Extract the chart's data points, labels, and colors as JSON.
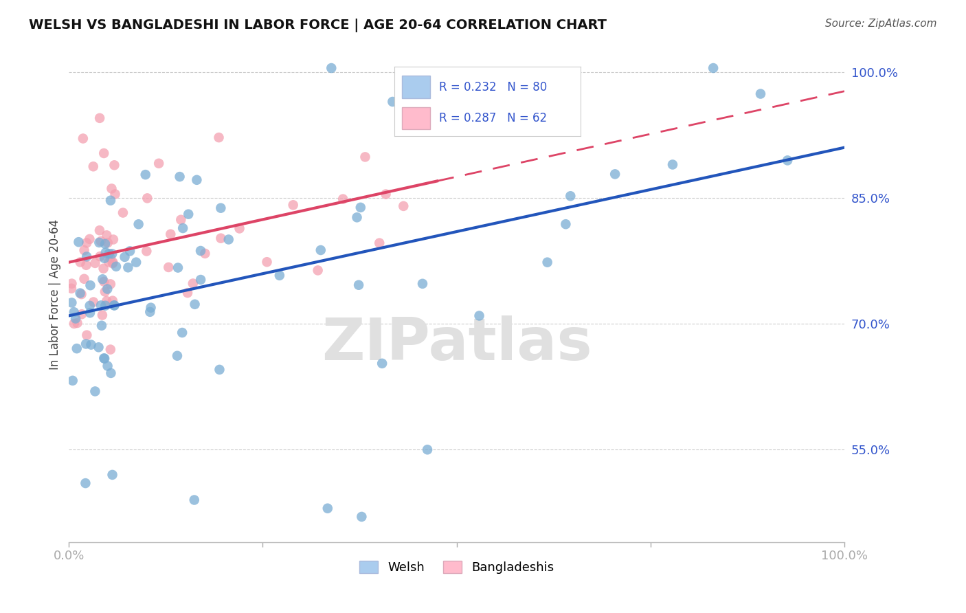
{
  "title": "WELSH VS BANGLADESHI IN LABOR FORCE | AGE 20-64 CORRELATION CHART",
  "source": "Source: ZipAtlas.com",
  "ylabel": "In Labor Force | Age 20-64",
  "xlim": [
    0.0,
    1.0
  ],
  "ylim": [
    0.44,
    1.03
  ],
  "ytick_positions": [
    0.55,
    0.7,
    0.85,
    1.0
  ],
  "ytick_labels": [
    "55.0%",
    "70.0%",
    "85.0%",
    "100.0%"
  ],
  "grid_color": "#cccccc",
  "background_color": "#ffffff",
  "welsh_color": "#7aadd4",
  "bangladeshi_color": "#f4a0b0",
  "welsh_R": 0.232,
  "welsh_N": 80,
  "bangladeshi_R": 0.287,
  "bangladeshi_N": 62,
  "watermark": "ZIPatlas",
  "watermark_color": "#e0e0e0",
  "legend_box_color_welsh": "#aaccee",
  "legend_box_color_bangladeshi": "#ffbbcc",
  "trendline_welsh_color": "#2255bb",
  "trendline_bang_color": "#dd4466",
  "label_color": "#3355cc"
}
